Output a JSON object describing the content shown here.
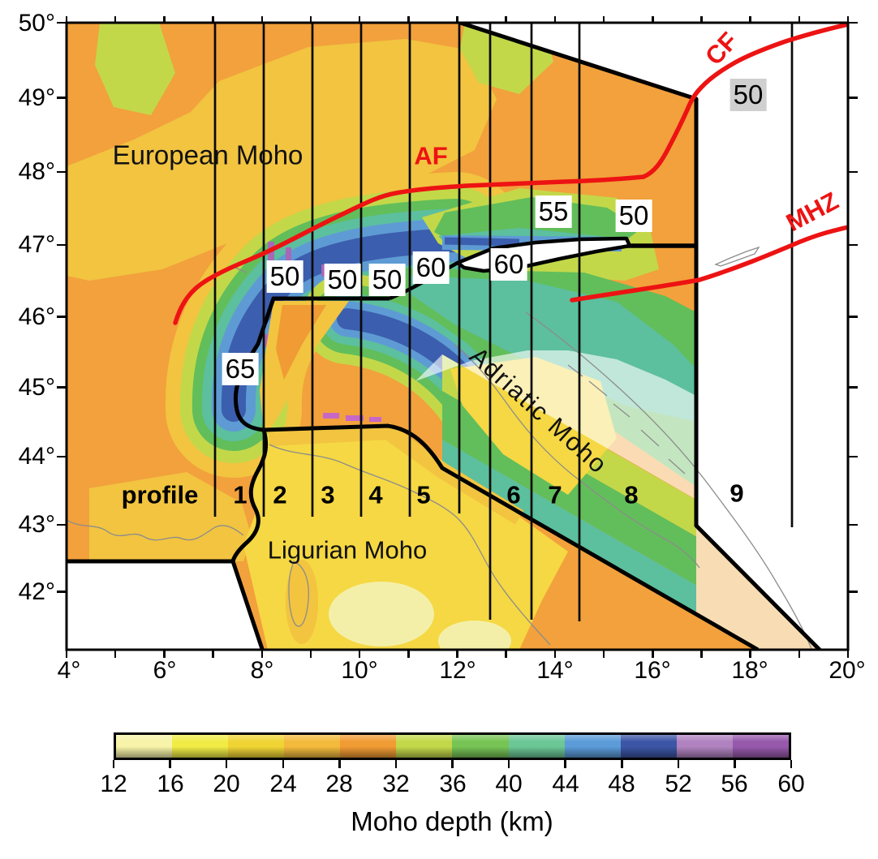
{
  "map": {
    "region_labels": {
      "european": "European Moho",
      "ligurian": "Ligurian Moho",
      "adriatic": "Adriatic Moho"
    },
    "faults": {
      "af": "AF",
      "cf": "CF",
      "mhz": "MHZ",
      "line_color": "#ED1313"
    },
    "profiles": {
      "caption": "profile",
      "numbers": [
        "1",
        "2",
        "3",
        "4",
        "5",
        "6",
        "7",
        "8",
        "9"
      ],
      "lines_lon_deg": [
        7,
        8,
        9,
        10,
        11,
        12.7,
        13.5,
        14.5,
        18.8
      ]
    },
    "contour_labels": [
      {
        "text": "65",
        "lon": 7.6,
        "lat": 45.3
      },
      {
        "text": "50",
        "lon": 8.5,
        "lat": 46.6
      },
      {
        "text": "50",
        "lon": 9.7,
        "lat": 46.5
      },
      {
        "text": "50",
        "lon": 10.6,
        "lat": 46.5
      },
      {
        "text": "60",
        "lon": 11.5,
        "lat": 46.7
      },
      {
        "text": "60",
        "lon": 13.1,
        "lat": 46.7
      },
      {
        "text": "55",
        "lon": 14.0,
        "lat": 47.5
      },
      {
        "text": "50",
        "lon": 15.6,
        "lat": 47.4
      },
      {
        "text": "50",
        "lon": 18.0,
        "lat": 49.0,
        "style": "gray"
      }
    ]
  },
  "axes": {
    "lon_labels": [
      "4°",
      "6°",
      "8°",
      "10°",
      "12°",
      "14°",
      "16°",
      "18°",
      "20°"
    ],
    "lat_labels": [
      "50°",
      "49°",
      "48°",
      "47°",
      "46°",
      "45°",
      "44°",
      "43°",
      "42°"
    ]
  },
  "colorbar": {
    "title": "Moho depth (km)",
    "tick_labels": [
      "12",
      "16",
      "20",
      "24",
      "28",
      "32",
      "36",
      "40",
      "44",
      "48",
      "52",
      "56",
      "60"
    ],
    "cell_colors": [
      "#F7F3A8",
      "#F0EC45",
      "#F0D434",
      "#F3BA3C",
      "#F09B33",
      "#C3D849",
      "#77C455",
      "#6BC795",
      "#5B9BD8",
      "#3C55A5",
      "#B083C0",
      "#9759AC"
    ]
  },
  "map_data": {
    "type": "geographic moho-depth map",
    "depth_range_km": [
      12,
      60
    ],
    "depth_step_km": 4,
    "lon_range_deg": [
      4,
      20
    ],
    "lat_range_deg": [
      41.2,
      50
    ],
    "moho_domains": [
      "European Moho",
      "Adriatic Moho",
      "Ligurian Moho"
    ],
    "fault_lines": [
      "AF",
      "CF",
      "MHZ"
    ],
    "profile_count": 9
  }
}
